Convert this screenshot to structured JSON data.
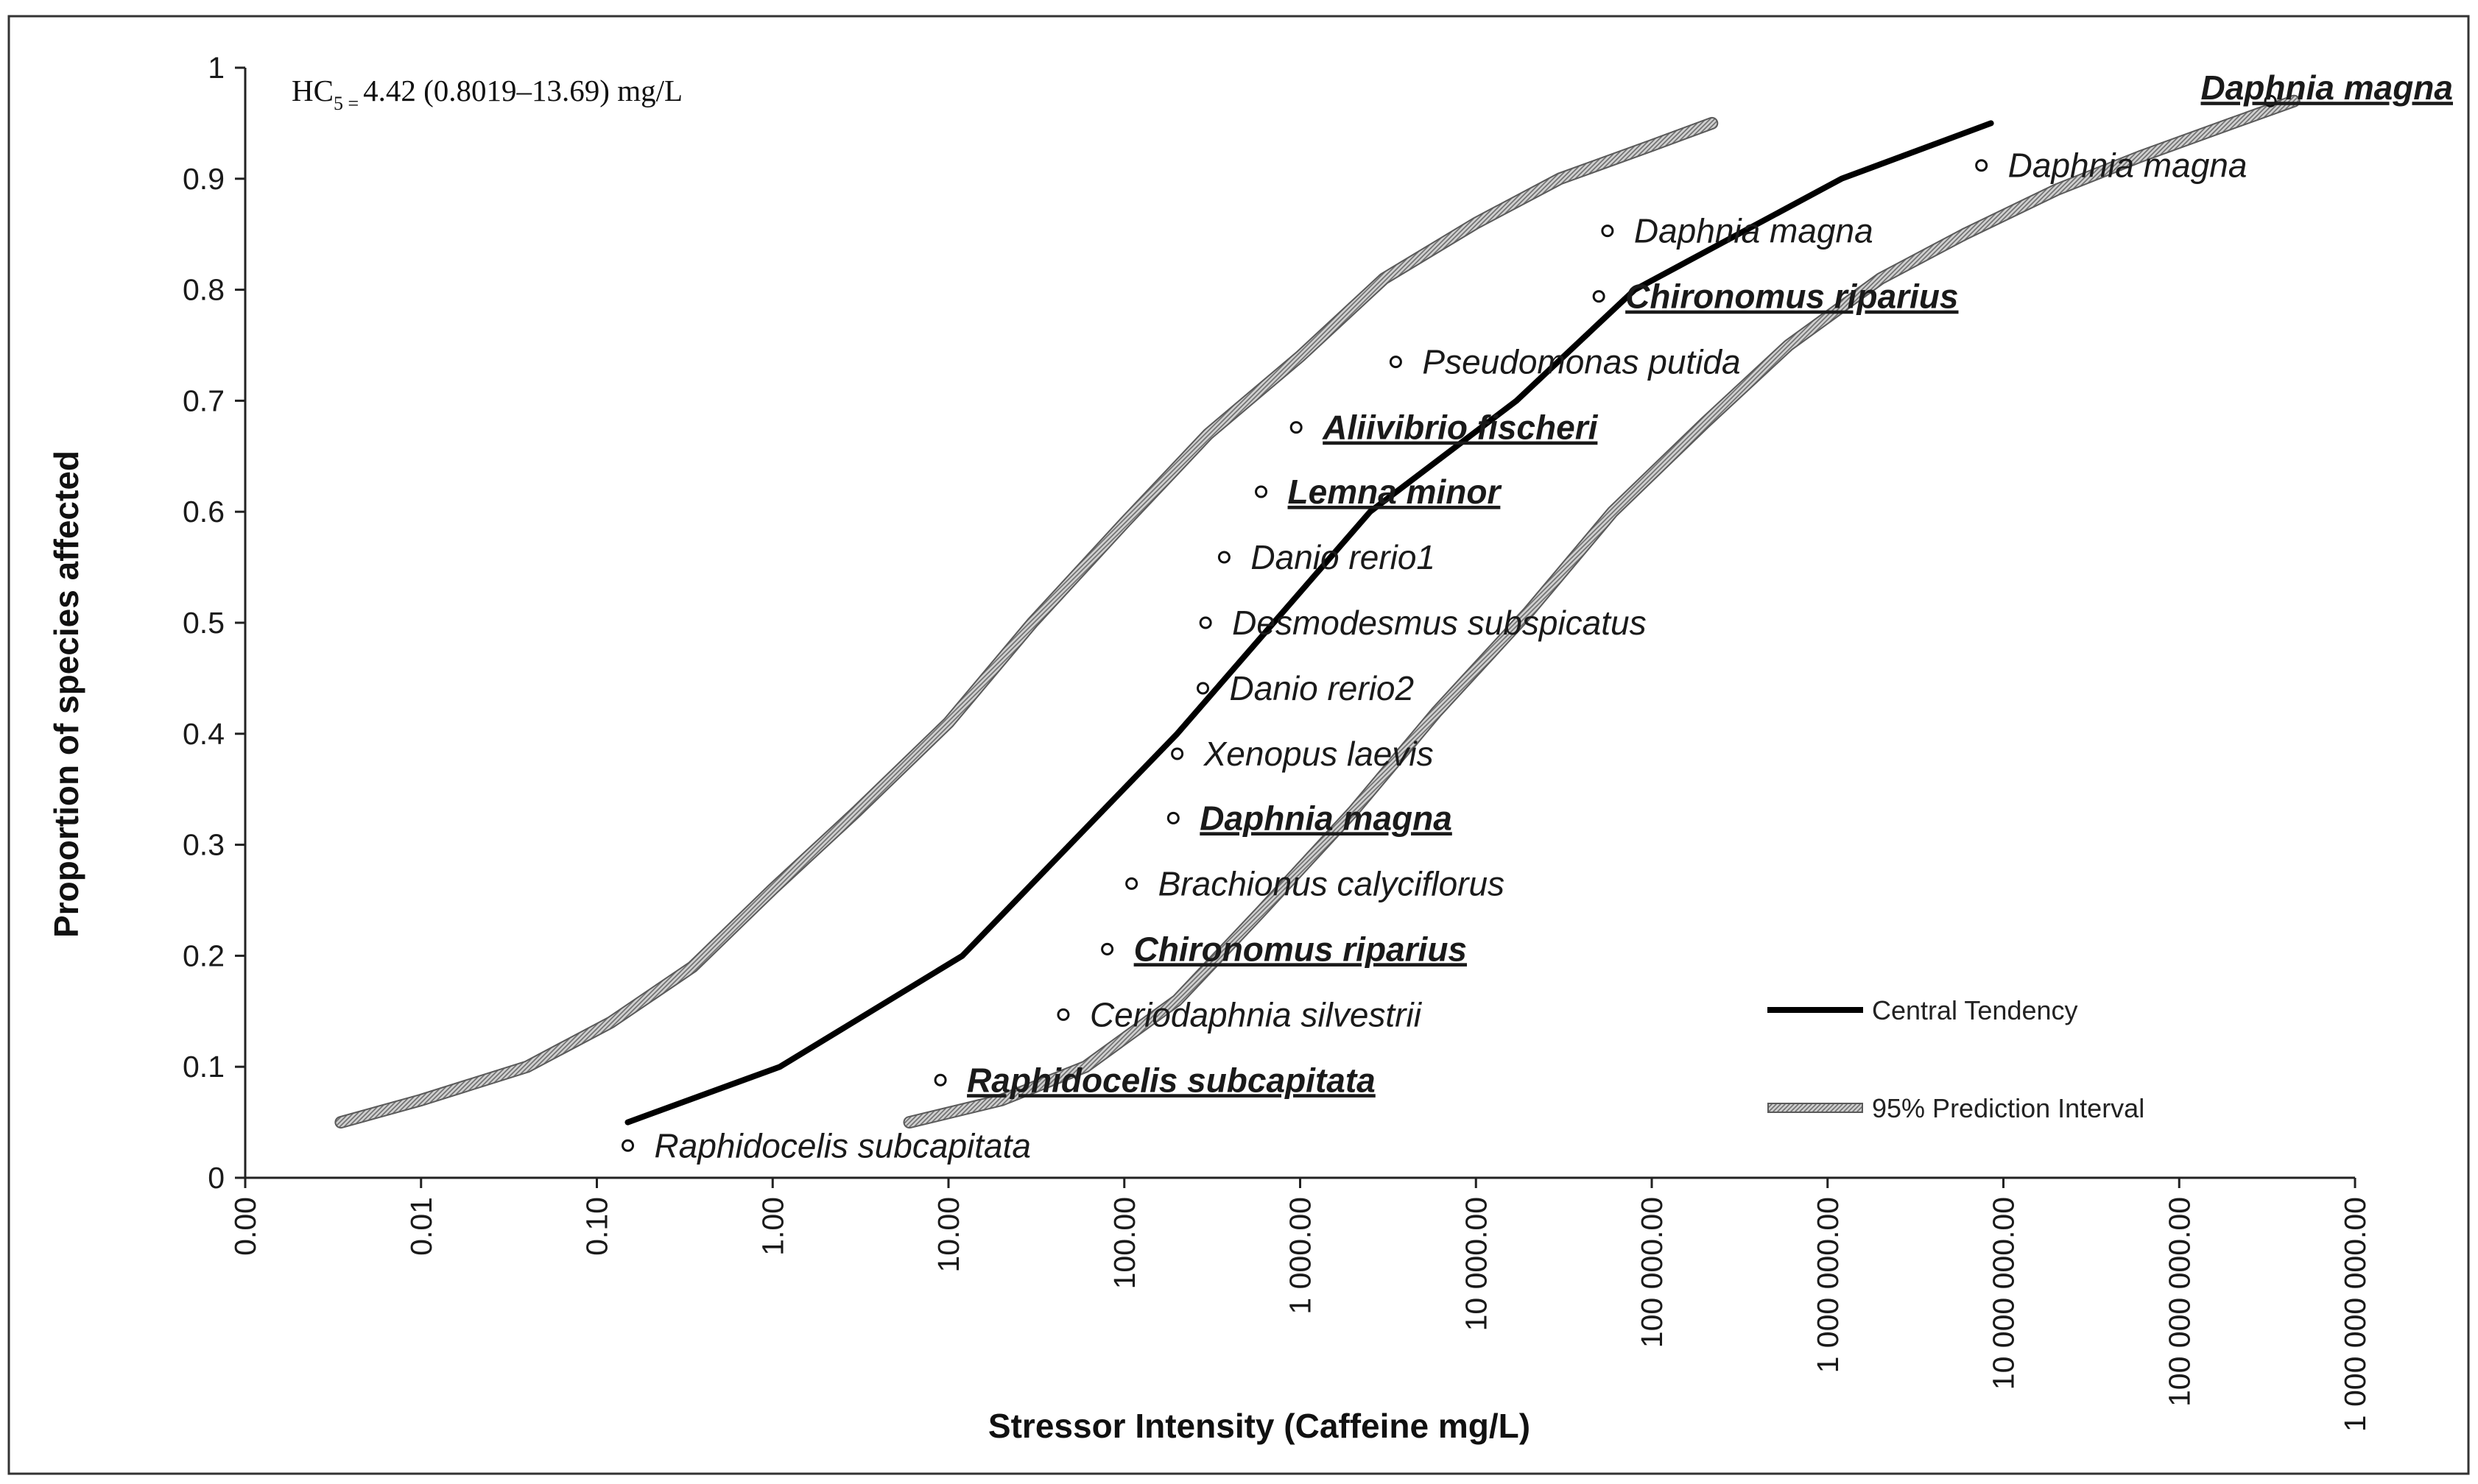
{
  "chart_data": {
    "type": "scatter",
    "annotation": {
      "prefix": "HC",
      "subscript": "5 =",
      "value": "4.42 (0.8019–13.69) mg/L"
    },
    "xlabel": "Stressor Intensity (Caffeine mg/L)",
    "ylabel": "Proportion of species affected",
    "xscale": "log",
    "xlim": [
      0.001,
      1000000000
    ],
    "ylim": [
      0,
      1
    ],
    "x_ticks": [
      {
        "value": 0.001,
        "label": "0.00"
      },
      {
        "value": 0.01,
        "label": "0.01"
      },
      {
        "value": 0.1,
        "label": "0.10"
      },
      {
        "value": 1,
        "label": "1.00"
      },
      {
        "value": 10,
        "label": "10.00"
      },
      {
        "value": 100,
        "label": "100.00"
      },
      {
        "value": 1000,
        "label": "1 000.00"
      },
      {
        "value": 10000,
        "label": "10 000.00"
      },
      {
        "value": 100000,
        "label": "100 000.00"
      },
      {
        "value": 1000000,
        "label": "1 000 000.00"
      },
      {
        "value": 10000000,
        "label": "10 000 000.00"
      },
      {
        "value": 100000000,
        "label": "100 000 000.00"
      },
      {
        "value": 1000000000,
        "label": "1 000 000 000.00"
      }
    ],
    "y_ticks": [
      {
        "value": 0,
        "label": "0"
      },
      {
        "value": 0.1,
        "label": "0.1"
      },
      {
        "value": 0.2,
        "label": "0.2"
      },
      {
        "value": 0.3,
        "label": "0.3"
      },
      {
        "value": 0.4,
        "label": "0.4"
      },
      {
        "value": 0.5,
        "label": "0.5"
      },
      {
        "value": 0.6,
        "label": "0.6"
      },
      {
        "value": 0.7,
        "label": "0.7"
      },
      {
        "value": 0.8,
        "label": "0.8"
      },
      {
        "value": 0.9,
        "label": "0.9"
      },
      {
        "value": 1,
        "label": "1"
      }
    ],
    "points": [
      {
        "species": "Raphidocelis subcapitata",
        "x": 0.15,
        "y": 0.029,
        "bold": false
      },
      {
        "species": "Raphidocelis subcapitata",
        "x": 9,
        "y": 0.088,
        "bold": true
      },
      {
        "species": "Ceriodaphnia silvestrii",
        "x": 45,
        "y": 0.147,
        "bold": false
      },
      {
        "species": "Chironomus riparius",
        "x": 80,
        "y": 0.206,
        "bold": true
      },
      {
        "species": "Brachionus calyciflorus",
        "x": 110,
        "y": 0.265,
        "bold": false
      },
      {
        "species": "Daphnia magna",
        "x": 190,
        "y": 0.324,
        "bold": true
      },
      {
        "species": "Xenopus laevis",
        "x": 200,
        "y": 0.382,
        "bold": false
      },
      {
        "species": "Danio rerio2",
        "x": 280,
        "y": 0.441,
        "bold": false
      },
      {
        "species": "Desmodesmus subspicatus",
        "x": 290,
        "y": 0.5,
        "bold": false
      },
      {
        "species": "Danio rerio1",
        "x": 370,
        "y": 0.559,
        "bold": false
      },
      {
        "species": "Lemna minor",
        "x": 600,
        "y": 0.618,
        "bold": true
      },
      {
        "species": "Aliivibrio fischeri",
        "x": 950,
        "y": 0.676,
        "bold": true
      },
      {
        "species": "Pseudomonas putida",
        "x": 3500,
        "y": 0.735,
        "bold": false
      },
      {
        "species": "Chironomus riparius",
        "x": 50000,
        "y": 0.794,
        "bold": true
      },
      {
        "species": "Daphnia magna",
        "x": 56000,
        "y": 0.853,
        "bold": false
      },
      {
        "species": "Daphnia magna",
        "x": 7500000,
        "y": 0.912,
        "bold": false
      },
      {
        "species": "Daphnia magna",
        "x": 330000000,
        "y": 0.97,
        "bold": true
      }
    ],
    "series": [
      {
        "name": "Central Tendency",
        "style": "solid",
        "color": "#000000",
        "x": [
          0.15,
          1.1,
          12,
          200,
          2500,
          17000,
          80000,
          1200000,
          8500000
        ],
        "y": [
          0.05,
          0.1,
          0.2,
          0.4,
          0.6,
          0.7,
          0.8,
          0.9,
          0.95
        ]
      },
      {
        "name": "95% Prediction Interval",
        "style": "hatched",
        "color": "#9a9a9a",
        "bands": [
          {
            "x": [
              0.0035,
              0.01,
              0.04,
              0.12,
              0.35,
              1,
              3,
              10,
              30,
              100,
              300,
              1000,
              3000,
              10000,
              30000,
              100000,
              220000
            ],
            "y": [
              0.05,
              0.07,
              0.1,
              0.14,
              0.19,
              0.26,
              0.33,
              0.41,
              0.5,
              0.59,
              0.67,
              0.74,
              0.81,
              0.86,
              0.9,
              0.93,
              0.95
            ]
          },
          {
            "x": [
              6,
              20,
              60,
              200,
              600,
              2000,
              6000,
              20000,
              60000,
              200000,
              600000,
              2000000,
              6000000,
              20000000,
              60000000,
              200000000,
              450000000
            ],
            "y": [
              0.05,
              0.07,
              0.1,
              0.16,
              0.24,
              0.33,
              0.42,
              0.51,
              0.6,
              0.68,
              0.75,
              0.81,
              0.85,
              0.89,
              0.92,
              0.95,
              0.97
            ]
          }
        ]
      }
    ],
    "legend": {
      "placement": "bottom-right",
      "items": [
        {
          "label": "Central Tendency",
          "style": "solid"
        },
        {
          "label": "95% Prediction Interval",
          "style": "hatched"
        }
      ]
    }
  }
}
